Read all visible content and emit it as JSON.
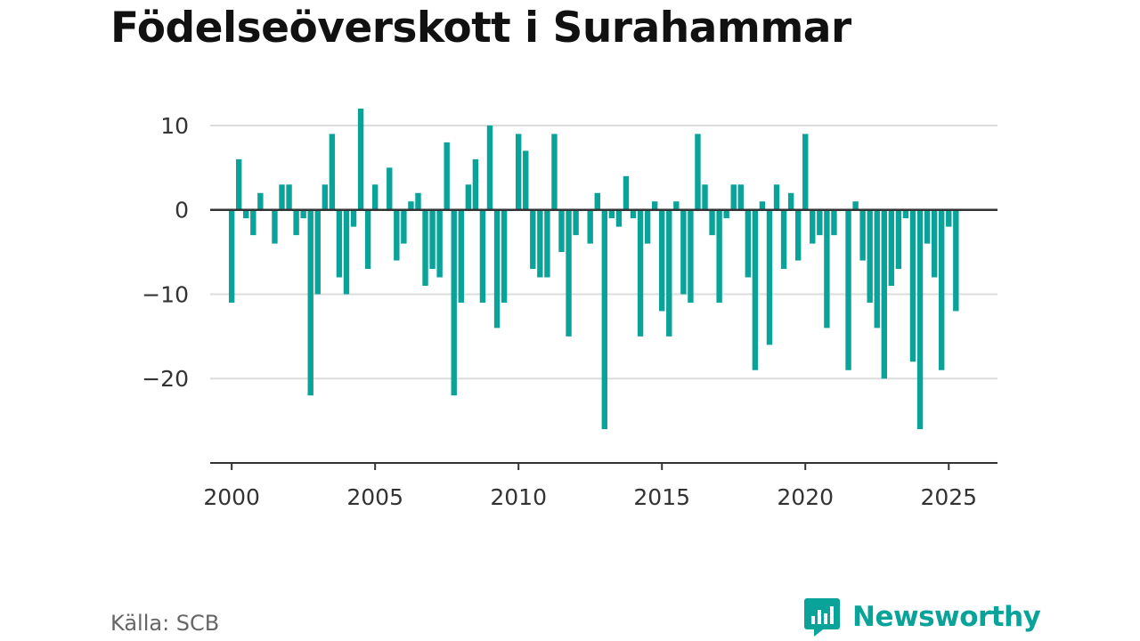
{
  "title": "Födelseöverskott i Surahammar",
  "source": "Källa: SCB",
  "brand": {
    "name": "Newsworthy",
    "icon": "newsworthy-logo-icon",
    "color": "#0aa39a"
  },
  "chart_data": {
    "type": "bar",
    "title": "Födelseöverskott i Surahammar",
    "xlabel": "",
    "ylabel": "",
    "bar_color": "#0aa39a",
    "grid": true,
    "xlim": [
      1999.25,
      2026.7
    ],
    "ylim": [
      -30,
      12
    ],
    "x_ticks": [
      2000,
      2005,
      2010,
      2015,
      2020,
      2025
    ],
    "y_ticks": [
      -20,
      -10,
      0,
      10
    ],
    "y_tick_labels": [
      "−20",
      "−10",
      "0",
      "10"
    ],
    "x": [
      2000.0,
      2000.25,
      2000.5,
      2000.75,
      2001.0,
      2001.25,
      2001.5,
      2001.75,
      2002.0,
      2002.25,
      2002.5,
      2002.75,
      2003.0,
      2003.25,
      2003.5,
      2003.75,
      2004.0,
      2004.25,
      2004.5,
      2004.75,
      2005.0,
      2005.25,
      2005.5,
      2005.75,
      2006.0,
      2006.25,
      2006.5,
      2006.75,
      2007.0,
      2007.25,
      2007.5,
      2007.75,
      2008.0,
      2008.25,
      2008.5,
      2008.75,
      2009.0,
      2009.25,
      2009.5,
      2009.75,
      2010.0,
      2010.25,
      2010.5,
      2010.75,
      2011.0,
      2011.25,
      2011.5,
      2011.75,
      2012.0,
      2012.25,
      2012.5,
      2012.75,
      2013.0,
      2013.25,
      2013.5,
      2013.75,
      2014.0,
      2014.25,
      2014.5,
      2014.75,
      2015.0,
      2015.25,
      2015.5,
      2015.75,
      2016.0,
      2016.25,
      2016.5,
      2016.75,
      2017.0,
      2017.25,
      2017.5,
      2017.75,
      2018.0,
      2018.25,
      2018.5,
      2018.75,
      2019.0,
      2019.25,
      2019.5,
      2019.75,
      2020.0,
      2020.25,
      2020.5,
      2020.75,
      2021.0,
      2021.25,
      2021.5,
      2021.75,
      2022.0,
      2022.25,
      2022.5,
      2022.75,
      2023.0,
      2023.25,
      2023.5,
      2023.75,
      2024.0,
      2024.25,
      2024.5,
      2024.75,
      2025.0,
      2025.25
    ],
    "values": [
      -11,
      6,
      -1,
      -3,
      2,
      0,
      -4,
      3,
      3,
      -3,
      -1,
      -22,
      -10,
      3,
      9,
      -8,
      -10,
      -2,
      12,
      -7,
      3,
      0,
      5,
      -6,
      -4,
      1,
      2,
      -9,
      -7,
      -8,
      8,
      -22,
      -11,
      3,
      6,
      -11,
      10,
      -14,
      -11,
      0,
      9,
      7,
      -7,
      -8,
      -8,
      9,
      -5,
      -15,
      -3,
      0,
      -4,
      2,
      -26,
      -1,
      -2,
      4,
      -1,
      -15,
      -4,
      1,
      -12,
      -15,
      1,
      -10,
      -11,
      9,
      3,
      -3,
      -11,
      -1,
      3,
      3,
      -8,
      -19,
      1,
      -16,
      3,
      -7,
      2,
      -6,
      9,
      -4,
      -3,
      -14,
      -3,
      0,
      -19,
      1,
      -6,
      -11,
      -14,
      -20,
      -9,
      -7,
      -1,
      -18,
      -26,
      -4,
      -8,
      -19,
      -2,
      -12
    ]
  }
}
